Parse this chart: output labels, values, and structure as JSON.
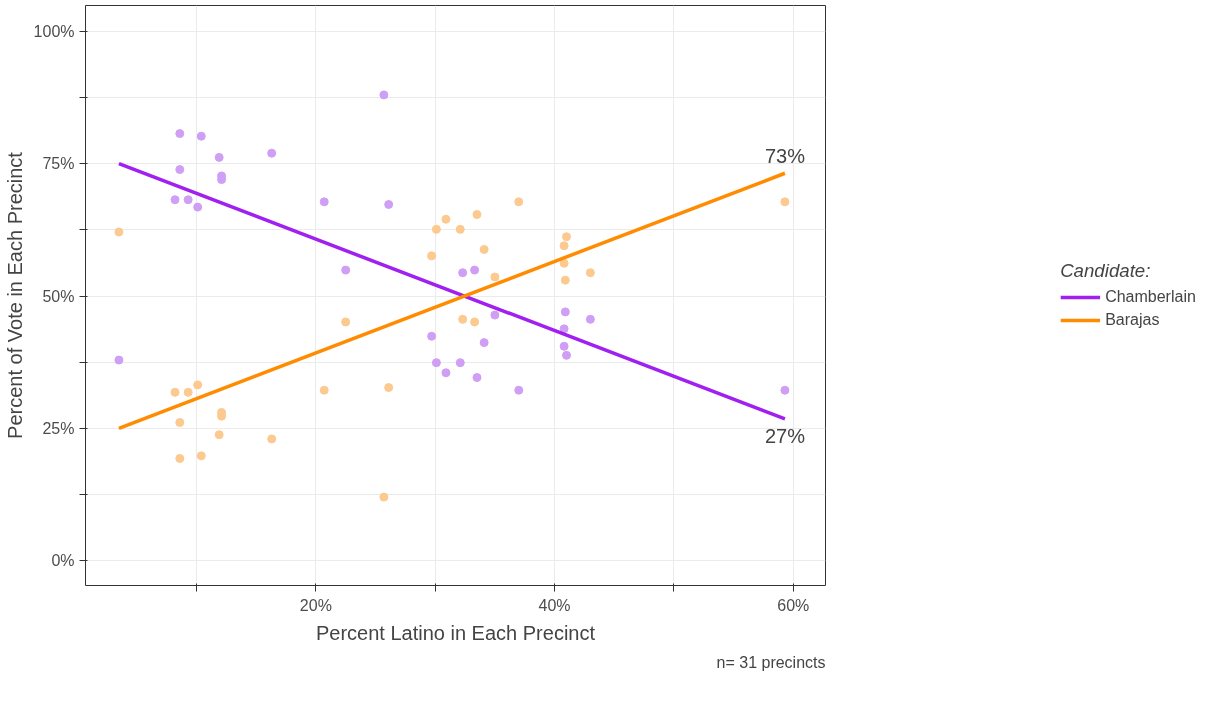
{
  "chart_data": {
    "type": "scatter",
    "xlabel": "Percent Latino in Each Precinct",
    "ylabel": "Percent of Vote in Each Precinct",
    "legend_title": "Candidate:",
    "xlim": [
      0.7,
      62.7
    ],
    "ylim": [
      -4.7,
      104.9
    ],
    "xticks": [
      {
        "value": 10,
        "label": null
      },
      {
        "value": 20,
        "label": "20%"
      },
      {
        "value": 30,
        "label": null
      },
      {
        "value": 40,
        "label": "40%"
      },
      {
        "value": 50,
        "label": null
      },
      {
        "value": 60,
        "label": "60%"
      }
    ],
    "yticks": [
      {
        "value": 0,
        "label": "0%"
      },
      {
        "value": 12.5,
        "label": null
      },
      {
        "value": 25,
        "label": "25%"
      },
      {
        "value": 37.5,
        "label": null
      },
      {
        "value": 50,
        "label": "50%"
      },
      {
        "value": 62.5,
        "label": null
      },
      {
        "value": 75,
        "label": "75%"
      },
      {
        "value": 87.5,
        "label": null
      },
      {
        "value": 100,
        "label": "100%"
      }
    ],
    "grid": true,
    "legend": "right",
    "marker": "circle",
    "series": [
      {
        "color": "#cf9ff5",
        "x": [
          3.5,
          8.6,
          8.6,
          8.2,
          9.3,
          10.1,
          10.4,
          11.9,
          12.1,
          12.1,
          16.3,
          20.7,
          22.5,
          25.7,
          26.1,
          29.7,
          30.1,
          30.9,
          32.1,
          33.5,
          34.1,
          35.0,
          37.0,
          32.3,
          33.3,
          40.9,
          40.8,
          40.8,
          41.0,
          43.0,
          59.3
        ],
        "values": [
          37.9,
          80.7,
          73.9,
          68.2,
          68.2,
          66.8,
          80.2,
          76.2,
          72.7,
          72.0,
          77.0,
          67.8,
          54.9,
          88.0,
          67.3,
          42.4,
          37.4,
          35.5,
          37.4,
          34.6,
          41.2,
          46.4,
          32.2,
          54.4,
          54.9,
          47.0,
          43.8,
          40.5,
          38.8,
          45.6,
          32.2
        ]
      },
      {
        "color": "#fcc98f",
        "x": [
          3.5,
          8.6,
          8.6,
          8.2,
          9.3,
          10.1,
          10.4,
          11.9,
          12.1,
          12.1,
          16.3,
          20.7,
          22.5,
          25.7,
          26.1,
          29.7,
          30.1,
          30.9,
          32.1,
          33.5,
          34.1,
          35.0,
          37.0,
          32.3,
          33.3,
          40.9,
          40.8,
          40.8,
          41.0,
          43.0,
          59.3
        ],
        "values": [
          62.1,
          19.3,
          26.1,
          31.8,
          31.8,
          33.2,
          19.8,
          23.8,
          27.3,
          28.0,
          23.0,
          32.2,
          45.1,
          12.0,
          32.7,
          57.6,
          62.6,
          64.5,
          62.6,
          65.4,
          58.8,
          53.6,
          67.8,
          45.6,
          45.1,
          53.0,
          56.2,
          59.5,
          61.2,
          54.4,
          67.8
        ]
      },
      {
        "type": "line",
        "marker": "none",
        "name": "Chamberlain",
        "color": "#a020f0",
        "x": [
          3.5,
          59.3
        ],
        "values": [
          75.0,
          26.8
        ]
      },
      {
        "type": "line",
        "marker": "none",
        "name": "Barajas",
        "color": "#ff8c00",
        "x": [
          3.5,
          59.3
        ],
        "values": [
          25.0,
          73.2
        ]
      }
    ],
    "annotations": [
      {
        "text": "73%",
        "x": 59.3,
        "y": 73.2
      },
      {
        "text": "27%",
        "x": 59.3,
        "y": 26.8
      },
      "n= 31 precincts"
    ]
  }
}
